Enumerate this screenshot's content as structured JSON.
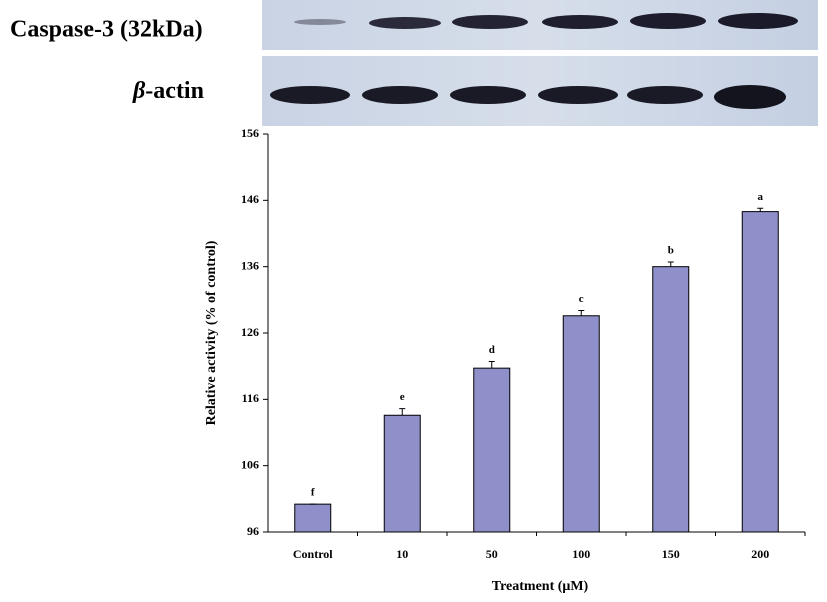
{
  "blot": {
    "caspase_label": "Caspase-3 (32kDa)",
    "actin_symbol": "β",
    "actin_name": "-actin"
  },
  "chart_data": {
    "type": "bar",
    "xlabel": "Treatment (μM)",
    "ylabel": "Relative activity (% of control)",
    "categories": [
      "Control",
      "10",
      "50",
      "100",
      "150",
      "200"
    ],
    "values": [
      100.2,
      113.6,
      120.7,
      128.6,
      136.0,
      144.3
    ],
    "errors": [
      0,
      1.0,
      1.0,
      0.8,
      0.7,
      0.5
    ],
    "letters": [
      "f",
      "e",
      "d",
      "c",
      "b",
      "a"
    ],
    "color": "#8f90c9",
    "ylim": [
      96,
      156
    ],
    "yticks": [
      96,
      106,
      116,
      126,
      136,
      146,
      156
    ]
  }
}
